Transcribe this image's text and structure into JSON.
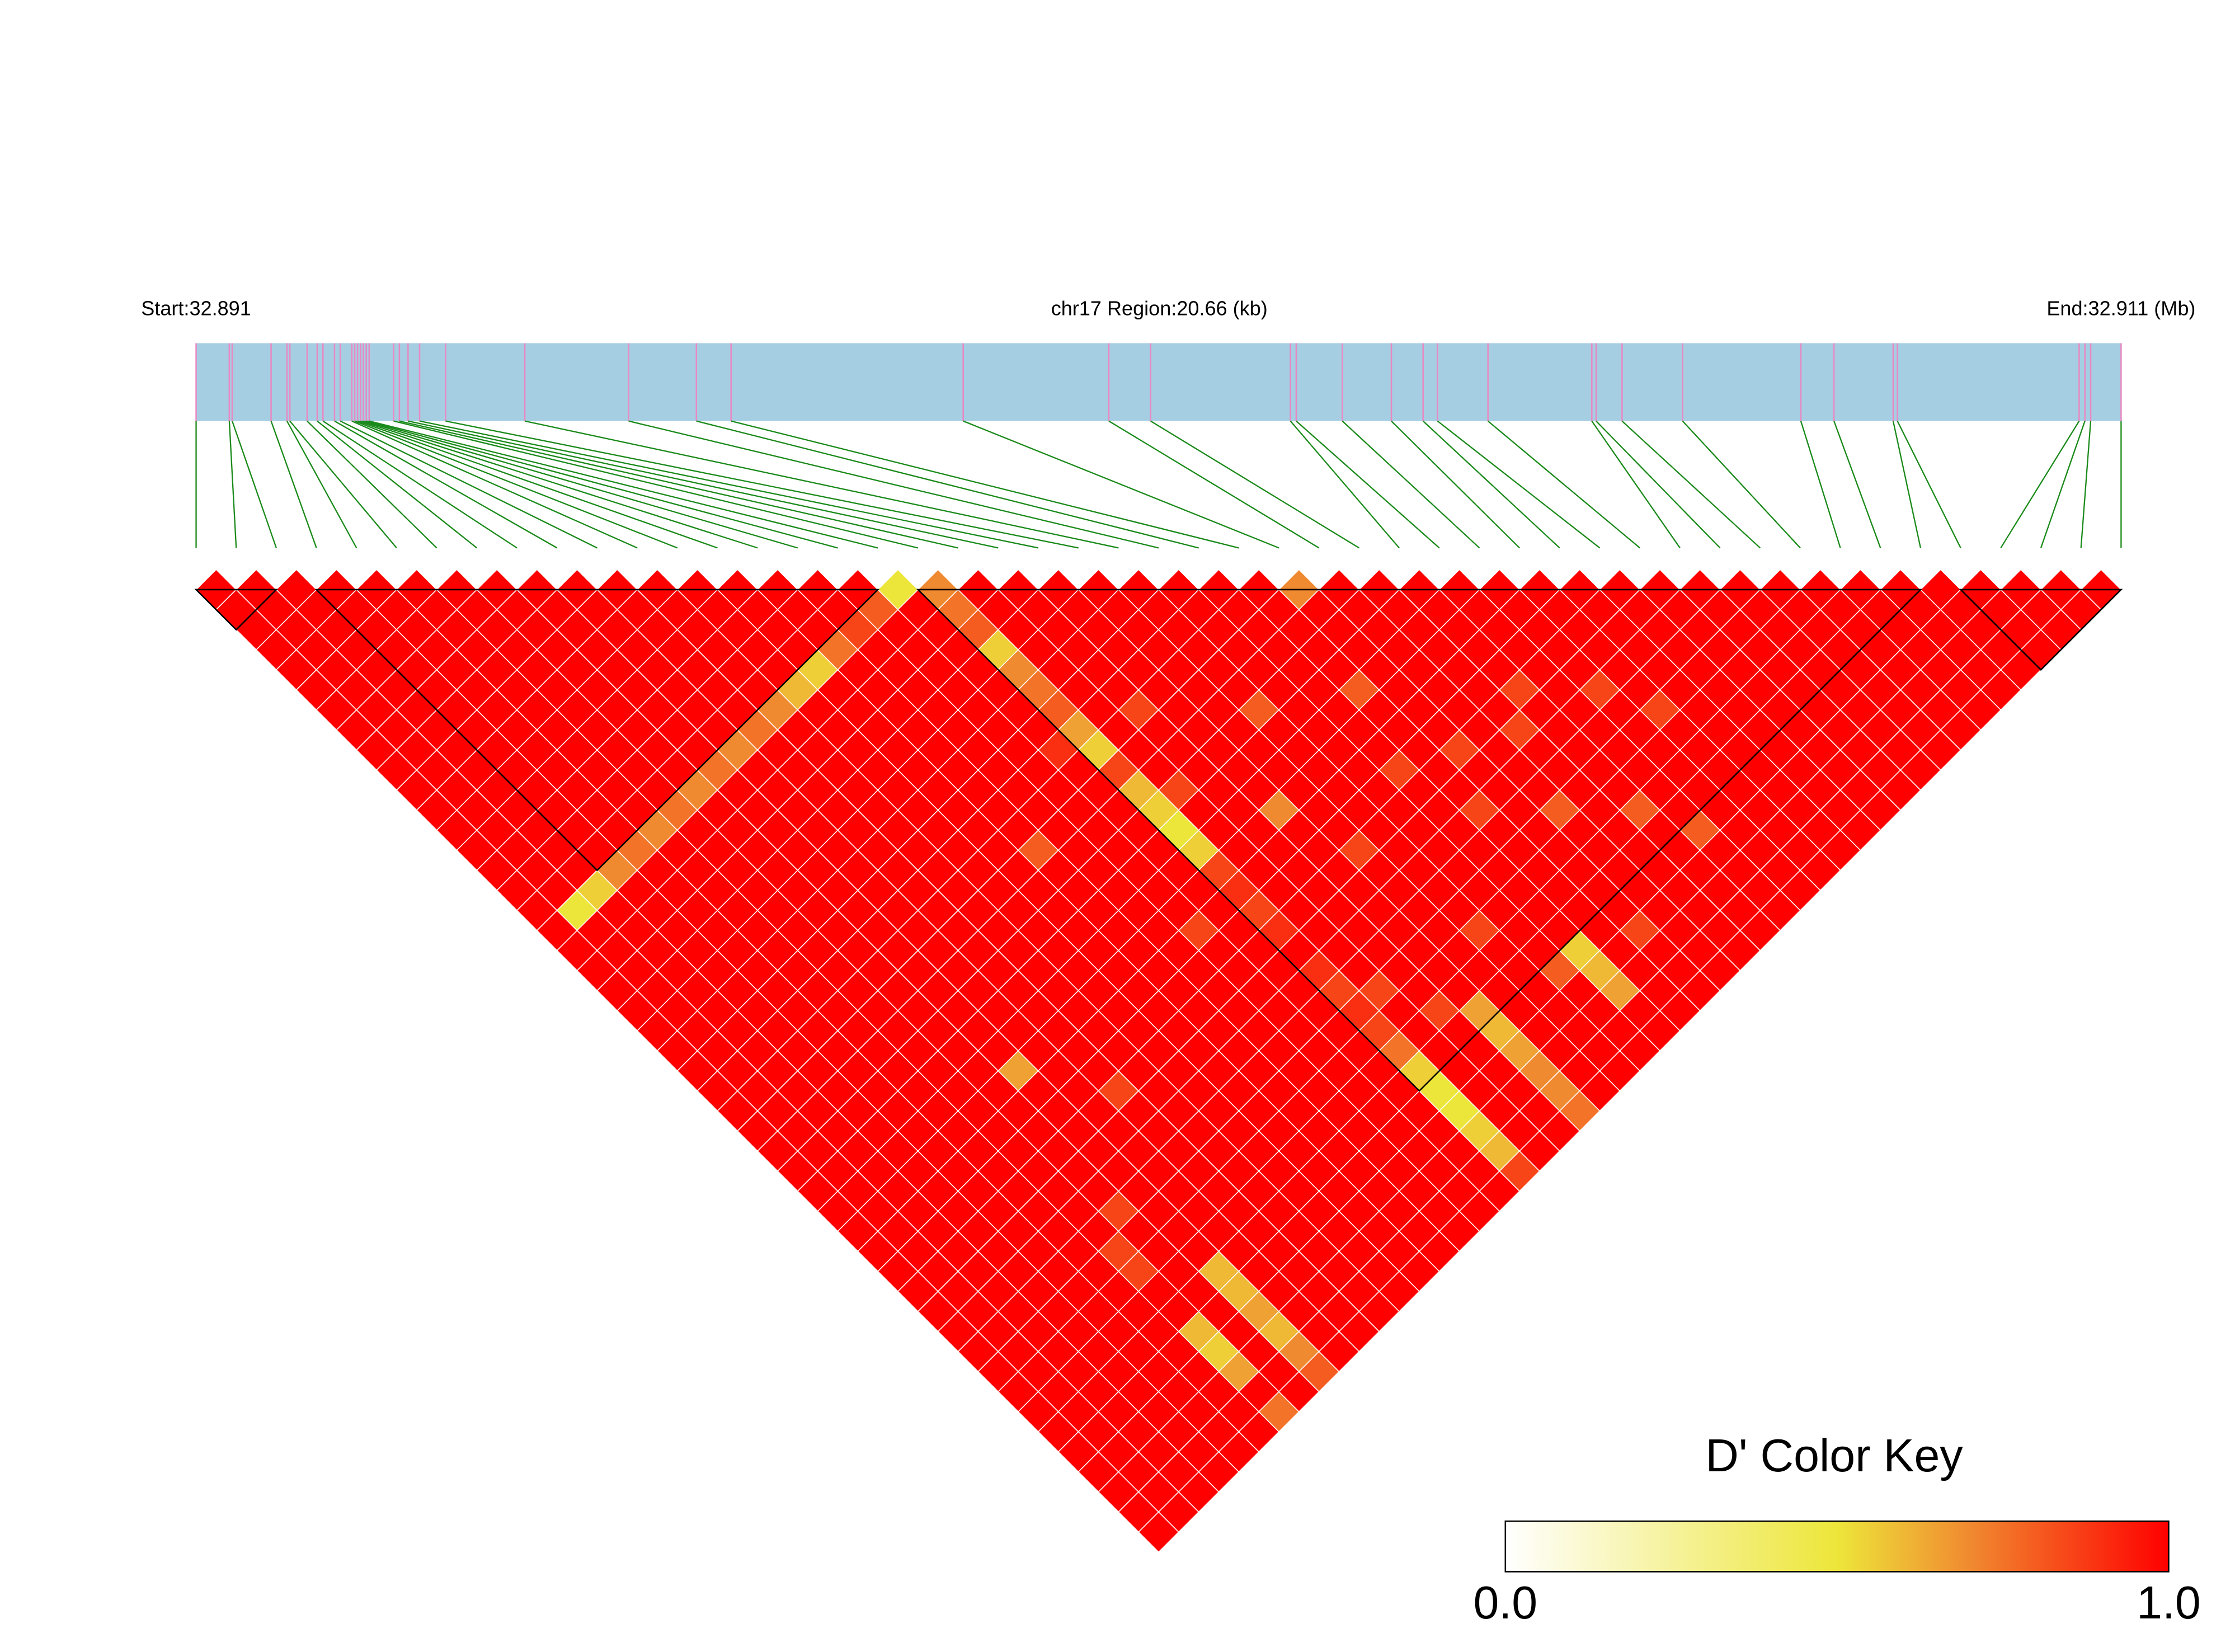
{
  "chart_data": {
    "type": "heatmap",
    "title": "chr17 Region:20.66 (kb)",
    "xlim": [
      32.891,
      32.911
    ],
    "xticks": [
      {
        "value": 32.891,
        "label": "Start:32.891"
      },
      {
        "value": 32.911,
        "label": "End:32.911 (Mb)"
      }
    ],
    "positions": [
      32.891,
      32.891345,
      32.891375,
      32.891779,
      32.891944,
      32.891974,
      32.892153,
      32.892258,
      32.892318,
      32.892438,
      32.892498,
      32.892618,
      32.892648,
      32.892678,
      32.892708,
      32.892738,
      32.892768,
      32.892798,
      32.893052,
      32.893112,
      32.893202,
      32.893322,
      32.893592,
      32.894415,
      32.895494,
      32.896198,
      32.896558,
      32.89897,
      32.900483,
      32.900917,
      32.90237,
      32.90243,
      32.902909,
      32.903418,
      32.903748,
      32.903898,
      32.904422,
      32.905501,
      32.905546,
      32.905815,
      32.906444,
      32.907673,
      32.908017,
      32.908632,
      32.908676,
      32.910564,
      32.910624,
      32.910684,
      32.911
    ],
    "blocks": [
      [
        0,
        2
      ],
      [
        3,
        17
      ],
      [
        18,
        43
      ],
      [
        44,
        48
      ]
    ],
    "values": [
      [
        1,
        1,
        1,
        1,
        1,
        1,
        1,
        1,
        1,
        1,
        1,
        1,
        1,
        1,
        1,
        1,
        1,
        1,
        1,
        1,
        1,
        1,
        1,
        1,
        1,
        1,
        1,
        1,
        1,
        1,
        1,
        1,
        1,
        1,
        1,
        1,
        1,
        1,
        1,
        1,
        1,
        1,
        1,
        1,
        1,
        1,
        1,
        1
      ],
      [
        1,
        1,
        1,
        1,
        1,
        1,
        1,
        1,
        1,
        1,
        1,
        1,
        1,
        1,
        1,
        1,
        0.5,
        1,
        1,
        1,
        1,
        1,
        1,
        1,
        1,
        1,
        1,
        1,
        1,
        1,
        1,
        1,
        1,
        1,
        1,
        1,
        1,
        1,
        1,
        1,
        1,
        1,
        1,
        1,
        1,
        1,
        1
      ],
      [
        1,
        1,
        1,
        1,
        1,
        1,
        1,
        1,
        1,
        1,
        1,
        1,
        1,
        1,
        1,
        0.55,
        1,
        1,
        1,
        1,
        1,
        1,
        1,
        1,
        1,
        1,
        1,
        1,
        1,
        1,
        1,
        1,
        1,
        1,
        1,
        1,
        1,
        1,
        1,
        1,
        1,
        1,
        1,
        1,
        1,
        1
      ],
      [
        1,
        1,
        1,
        1,
        1,
        1,
        1,
        1,
        1,
        1,
        1,
        1,
        1,
        1,
        0.7,
        1,
        1,
        1,
        1,
        1,
        1,
        1,
        1,
        1,
        1,
        1,
        1,
        1,
        1,
        1,
        1,
        1,
        1,
        1,
        1,
        1,
        1,
        1,
        1,
        1,
        1,
        1,
        1,
        1,
        1
      ],
      [
        1,
        1,
        1,
        1,
        1,
        1,
        1,
        1,
        1,
        1,
        1,
        1,
        1,
        0.75,
        1,
        1,
        1,
        1,
        1,
        1,
        1,
        1,
        1,
        1,
        1,
        1,
        1,
        1,
        1,
        1,
        1,
        1,
        1,
        1,
        1,
        1,
        1,
        1,
        1,
        1,
        1,
        1,
        1,
        1
      ],
      [
        1,
        1,
        1,
        1,
        1,
        1,
        1,
        1,
        1,
        1,
        1,
        1,
        0.7,
        1,
        1,
        1,
        1,
        1,
        1,
        1,
        1,
        1,
        1,
        1,
        1,
        1,
        1,
        1,
        1,
        1,
        1,
        1,
        1,
        1,
        1,
        1,
        1,
        1,
        1,
        1,
        1,
        1,
        1
      ],
      [
        1,
        1,
        1,
        1,
        1,
        1,
        1,
        1,
        1,
        1,
        1,
        0.75,
        1,
        1,
        1,
        1,
        1,
        1,
        1,
        1,
        1,
        1,
        1,
        1,
        1,
        1,
        1,
        1,
        1,
        1,
        1,
        1,
        1,
        0.85,
        0.85,
        1,
        1,
        0.6,
        0.55,
        0.65,
        1,
        0.75
      ],
      [
        1,
        1,
        1,
        1,
        1,
        1,
        1,
        1,
        1,
        1,
        0.7,
        1,
        1,
        1,
        1,
        1,
        1,
        1,
        1,
        1,
        1,
        1,
        1,
        1,
        1,
        1,
        1,
        1,
        1,
        1,
        1,
        0.85,
        1,
        1,
        1,
        1,
        1,
        1,
        1,
        1,
        1
      ],
      [
        1,
        1,
        1,
        1,
        1,
        1,
        1,
        1,
        1,
        0.75,
        1,
        1,
        1,
        1,
        1,
        1,
        1,
        1,
        1,
        1,
        1,
        1,
        1,
        1,
        0.65,
        1,
        1,
        1,
        1,
        1,
        1,
        1,
        1,
        1,
        0.6,
        0.6,
        0.65,
        0.6,
        0.7,
        0.8
      ],
      [
        1,
        1,
        1,
        1,
        1,
        1,
        1,
        1,
        0.7,
        1,
        1,
        1,
        1,
        1,
        1,
        1,
        1,
        1,
        1,
        1,
        1,
        1,
        1,
        1,
        1,
        1,
        1,
        1,
        1,
        1,
        1,
        1,
        1,
        1,
        1,
        1,
        1,
        1,
        1
      ],
      [
        1,
        1,
        1,
        1,
        1,
        1,
        1,
        0.75,
        1,
        1,
        1,
        1,
        1,
        1,
        1,
        1,
        1,
        1,
        1,
        1,
        1,
        1,
        1,
        1,
        1,
        0.85,
        1,
        1,
        1,
        1,
        1,
        1,
        1,
        1,
        1,
        1,
        1,
        1
      ],
      [
        1,
        1,
        1,
        1,
        1,
        1,
        0.7,
        1,
        1,
        1,
        1,
        1,
        1,
        1,
        1,
        1,
        1,
        1,
        1,
        1,
        1,
        1,
        1,
        1,
        1,
        1,
        1,
        1,
        1,
        1,
        1,
        1,
        1,
        1,
        1,
        1,
        1
      ],
      [
        1,
        1,
        1,
        1,
        1,
        0.6,
        1,
        1,
        1,
        1,
        1,
        1,
        1,
        1,
        1,
        1,
        1,
        1,
        1,
        1,
        1,
        1,
        1,
        1,
        1,
        1,
        1,
        1,
        1,
        1,
        1,
        1,
        1,
        1,
        1,
        1
      ],
      [
        1,
        1,
        1,
        1,
        0.55,
        1,
        1,
        1,
        1,
        1,
        1,
        1,
        1,
        1,
        1,
        1,
        1,
        1,
        1,
        1,
        1,
        1,
        1,
        1,
        1,
        1,
        1,
        1,
        1,
        1,
        1,
        1,
        1,
        1,
        1
      ],
      [
        1,
        1,
        1,
        0.75,
        1,
        1,
        1,
        1,
        1,
        1,
        1,
        1,
        1,
        0.8,
        1,
        1,
        1,
        1,
        1,
        1,
        1,
        1,
        1,
        1,
        1,
        1,
        1,
        1,
        1,
        1,
        1,
        1,
        1,
        1
      ],
      [
        1,
        1,
        0.85,
        1,
        1,
        1,
        1,
        1,
        1,
        1,
        1,
        1,
        1,
        1,
        1,
        1,
        1,
        1,
        1,
        1,
        1,
        1,
        1,
        1,
        1,
        1,
        1,
        1,
        1,
        1,
        1,
        1,
        1
      ],
      [
        1,
        0.8,
        1,
        1,
        1,
        1,
        1,
        1,
        1,
        1,
        1,
        1,
        1,
        1,
        1,
        1,
        1,
        0.85,
        1,
        1,
        1,
        1,
        1,
        1,
        1,
        1,
        1,
        1,
        1,
        1,
        1,
        1
      ],
      [
        0.5,
        1,
        1,
        1,
        1,
        1,
        1,
        1,
        0.9,
        1,
        1,
        1,
        1,
        1,
        1,
        1,
        1,
        1,
        1,
        1,
        1,
        1,
        1,
        1,
        1,
        1,
        1,
        1,
        1,
        1,
        1
      ],
      [
        0.7,
        0.75,
        0.8,
        0.55,
        0.7,
        0.75,
        0.8,
        0.65,
        0.55,
        0.85,
        0.6,
        0.55,
        0.5,
        0.55,
        0.85,
        0.9,
        0.85,
        0.9,
        1,
        0.9,
        0.85,
        0.9,
        0.85,
        0.75,
        0.55,
        0.5,
        0.5,
        0.55,
        0.6,
        0.85
      ],
      [
        1,
        1,
        1,
        1,
        1,
        1,
        1,
        1,
        1,
        1,
        0.85,
        1,
        1,
        1,
        1,
        1,
        1,
        1,
        1,
        1,
        0.85,
        1,
        1,
        1,
        1,
        1,
        1,
        1,
        1
      ],
      [
        1,
        1,
        1,
        1,
        1,
        1,
        0.85,
        1,
        1,
        1,
        1,
        1,
        1,
        1,
        1,
        1,
        1,
        1,
        1,
        1,
        1,
        0.85,
        1,
        1,
        1,
        1,
        1,
        1
      ],
      [
        1,
        1,
        1,
        1,
        1,
        1,
        1,
        1,
        1,
        1,
        1,
        0.7,
        1,
        1,
        1,
        1,
        1,
        1,
        1,
        1,
        1,
        0.65,
        0.6,
        0.65,
        0.7,
        0.7,
        0.75
      ],
      [
        1,
        1,
        1,
        1,
        1,
        1,
        1,
        1,
        1,
        1,
        1,
        1,
        1,
        0.85,
        1,
        1,
        1,
        1,
        1,
        1,
        1,
        1,
        1,
        1,
        1,
        1
      ],
      [
        1,
        1,
        1,
        1,
        1,
        1,
        0.8,
        1,
        1,
        1,
        1,
        1,
        1,
        1,
        1,
        1,
        1,
        0.85,
        1,
        1,
        1,
        1,
        1,
        1,
        1
      ],
      [
        1,
        1,
        1,
        1,
        1,
        1,
        1,
        1,
        1,
        1,
        1,
        1,
        1,
        1,
        1,
        1,
        1,
        1,
        1,
        0.8,
        1,
        1,
        1,
        1
      ],
      [
        1,
        1,
        1,
        1,
        1,
        1,
        1,
        1,
        1,
        0.85,
        1,
        1,
        1,
        1,
        1,
        1,
        1,
        1,
        0.55,
        0.6,
        0.65,
        1,
        1
      ],
      [
        1,
        1,
        1,
        1,
        1,
        0.8,
        1,
        1,
        1,
        1,
        1,
        0.85,
        1,
        1,
        1,
        1,
        1,
        1,
        1,
        1,
        1,
        1
      ],
      [
        0.7,
        1,
        1,
        1,
        1,
        1,
        1,
        1,
        0.85,
        1,
        1,
        1,
        1,
        1,
        1,
        1,
        1,
        0.85,
        1,
        1,
        1
      ],
      [
        1,
        1,
        1,
        1,
        1,
        1,
        1,
        1,
        1,
        1,
        1,
        0.8,
        1,
        1,
        1,
        1,
        1,
        1,
        1,
        1
      ],
      [
        1,
        1,
        1,
        1,
        1,
        1,
        1,
        0.85,
        1,
        1,
        1,
        1,
        1,
        1,
        1,
        1,
        1,
        1,
        1
      ],
      [
        1,
        1,
        1,
        1,
        1,
        0.85,
        1,
        1,
        1,
        1,
        1,
        0.8,
        1,
        1,
        1,
        1,
        1,
        1
      ],
      [
        1,
        1,
        1,
        1,
        1,
        1,
        1,
        1,
        1,
        1,
        1,
        1,
        0.8,
        1,
        1,
        1,
        1
      ],
      [
        1,
        1,
        1,
        1,
        1,
        0.85,
        1,
        1,
        1,
        1,
        1,
        1,
        1,
        1,
        1,
        1
      ],
      [
        1,
        1,
        1,
        1,
        1,
        1,
        0.85,
        1,
        1,
        1,
        1,
        1,
        1,
        1,
        1
      ],
      [
        1,
        1,
        1,
        1,
        1,
        1,
        1,
        1,
        1,
        1,
        1,
        1,
        1,
        1
      ],
      [
        1,
        1,
        1,
        1,
        1,
        1,
        1,
        1,
        1,
        1,
        1,
        1,
        1
      ],
      [
        1,
        1,
        1,
        1,
        1,
        1,
        1,
        1,
        1,
        1,
        1,
        1
      ],
      [
        1,
        1,
        1,
        1,
        1,
        1,
        1,
        1,
        1,
        1,
        1
      ],
      [
        1,
        1,
        1,
        1,
        1,
        1,
        1,
        1,
        1,
        1
      ],
      [
        1,
        1,
        1,
        1,
        1,
        1,
        1,
        1,
        1
      ],
      [
        1,
        1,
        1,
        1,
        1,
        1,
        1,
        1
      ],
      [
        1,
        1,
        1,
        1,
        1,
        1,
        1
      ],
      [
        1,
        1,
        1,
        1,
        1,
        1
      ],
      [
        1,
        1,
        1,
        1,
        1
      ],
      [
        1,
        1,
        1,
        1
      ],
      [
        1,
        1,
        1
      ],
      [
        1,
        1
      ],
      [
        1
      ]
    ],
    "colorscale": [
      [
        0,
        "#ffffff"
      ],
      [
        0.5,
        "#ede63a"
      ],
      [
        0.7,
        "#f08a30"
      ],
      [
        1,
        "#ff0000"
      ]
    ],
    "clim": [
      0,
      1
    ],
    "cticks": [
      {
        "value": 0,
        "label": "0.0"
      },
      {
        "value": 1,
        "label": "1.0"
      }
    ],
    "colorbar_title": "D' Color Key",
    "bar_color": "#a6cee3",
    "tick_color": "#e78ac3",
    "link_color": "#1a8a1a",
    "cell_border_color": "#ffffff",
    "block_color": "#000000"
  }
}
